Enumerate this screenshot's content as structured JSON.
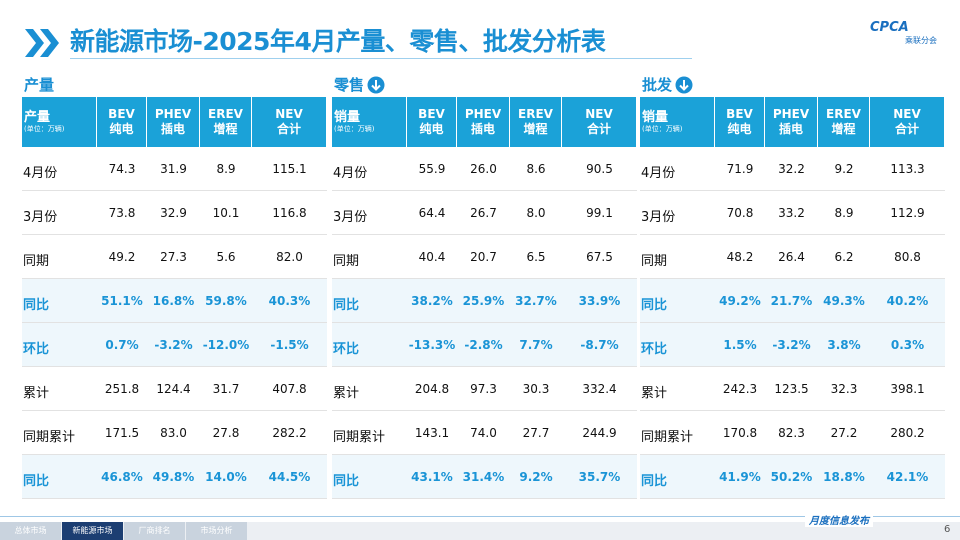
{
  "header": {
    "title": "新能源市场-2025年4月产量、零售、批发分析表",
    "logo": "CPCA",
    "logo_sub": "乘联分会"
  },
  "tables": [
    {
      "section": "产量",
      "corner": "产量",
      "unit": "(单位：万辆)",
      "columns": [
        [
          "BEV",
          "纯电"
        ],
        [
          "PHEV",
          "插电"
        ],
        [
          "EREV",
          "增程"
        ],
        [
          "NEV",
          "合计"
        ]
      ],
      "rows": [
        {
          "label": "4月份",
          "cells": [
            "74.3",
            "31.9",
            "8.9",
            "115.1"
          ]
        },
        {
          "label": "3月份",
          "cells": [
            "73.8",
            "32.9",
            "10.1",
            "116.8"
          ]
        },
        {
          "label": "同期",
          "cells": [
            "49.2",
            "27.3",
            "5.6",
            "82.0"
          ]
        },
        {
          "label": "同比",
          "cells": [
            "51.1%",
            "16.8%",
            "59.8%",
            "40.3%"
          ]
        },
        {
          "label": "环比",
          "cells": [
            "0.7%",
            "-3.2%",
            "-12.0%",
            "-1.5%"
          ]
        },
        {
          "label": "累计",
          "cells": [
            "251.8",
            "124.4",
            "31.7",
            "407.8"
          ]
        },
        {
          "label": "同期累计",
          "cells": [
            "171.5",
            "83.0",
            "27.8",
            "282.2"
          ]
        },
        {
          "label": "同比",
          "cells": [
            "46.8%",
            "49.8%",
            "14.0%",
            "44.5%"
          ]
        }
      ]
    },
    {
      "section": "零售",
      "corner": "销量",
      "unit": "(单位：万辆)",
      "columns": [
        [
          "BEV",
          "纯电"
        ],
        [
          "PHEV",
          "插电"
        ],
        [
          "EREV",
          "增程"
        ],
        [
          "NEV",
          "合计"
        ]
      ],
      "rows": [
        {
          "label": "4月份",
          "cells": [
            "55.9",
            "26.0",
            "8.6",
            "90.5"
          ]
        },
        {
          "label": "3月份",
          "cells": [
            "64.4",
            "26.7",
            "8.0",
            "99.1"
          ]
        },
        {
          "label": "同期",
          "cells": [
            "40.4",
            "20.7",
            "6.5",
            "67.5"
          ]
        },
        {
          "label": "同比",
          "cells": [
            "38.2%",
            "25.9%",
            "32.7%",
            "33.9%"
          ]
        },
        {
          "label": "环比",
          "cells": [
            "-13.3%",
            "-2.8%",
            "7.7%",
            "-8.7%"
          ]
        },
        {
          "label": "累计",
          "cells": [
            "204.8",
            "97.3",
            "30.3",
            "332.4"
          ]
        },
        {
          "label": "同期累计",
          "cells": [
            "143.1",
            "74.0",
            "27.7",
            "244.9"
          ]
        },
        {
          "label": "同比",
          "cells": [
            "43.1%",
            "31.4%",
            "9.2%",
            "35.7%"
          ]
        }
      ]
    },
    {
      "section": "批发",
      "corner": "销量",
      "unit": "(单位：万辆)",
      "columns": [
        [
          "BEV",
          "纯电"
        ],
        [
          "PHEV",
          "插电"
        ],
        [
          "EREV",
          "增程"
        ],
        [
          "NEV",
          "合计"
        ]
      ],
      "rows": [
        {
          "label": "4月份",
          "cells": [
            "71.9",
            "32.2",
            "9.2",
            "113.3"
          ]
        },
        {
          "label": "3月份",
          "cells": [
            "70.8",
            "33.2",
            "8.9",
            "112.9"
          ]
        },
        {
          "label": "同期",
          "cells": [
            "48.2",
            "26.4",
            "6.2",
            "80.8"
          ]
        },
        {
          "label": "同比",
          "cells": [
            "49.2%",
            "21.7%",
            "49.3%",
            "40.2%"
          ]
        },
        {
          "label": "环比",
          "cells": [
            "1.5%",
            "-3.2%",
            "3.8%",
            "0.3%"
          ]
        },
        {
          "label": "累计",
          "cells": [
            "242.3",
            "123.5",
            "32.3",
            "398.1"
          ]
        },
        {
          "label": "同期累计",
          "cells": [
            "170.8",
            "82.3",
            "27.2",
            "280.2"
          ]
        },
        {
          "label": "同比",
          "cells": [
            "41.9%",
            "50.2%",
            "18.8%",
            "42.1%"
          ]
        }
      ]
    }
  ],
  "footer": {
    "tabs": [
      "总体市场",
      "新能源市场",
      "厂商排名",
      "市场分析"
    ],
    "slogan": "月度信息发布",
    "page": "6"
  }
}
